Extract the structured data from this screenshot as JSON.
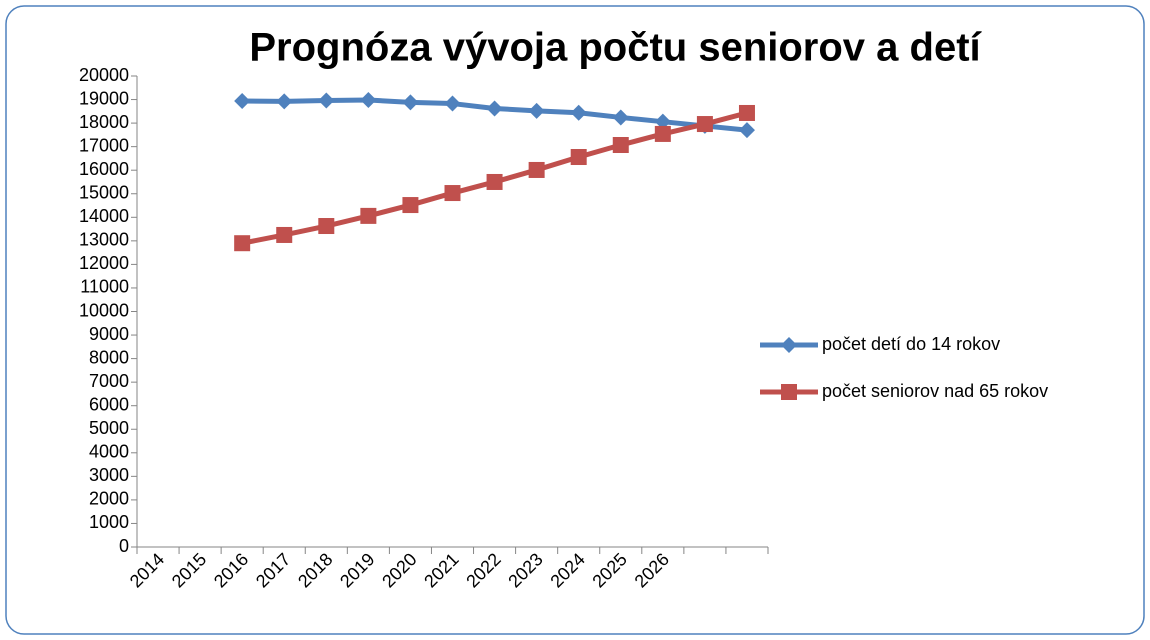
{
  "chart_data": {
    "type": "line",
    "title": "Prognóza vývoja počtu seniorov a detí",
    "categories": [
      "2014",
      "2015",
      "2016",
      "2017",
      "2018",
      "2019",
      "2020",
      "2021",
      "2022",
      "2023",
      "2024",
      "2025",
      "2026",
      null,
      null
    ],
    "series": [
      {
        "name": "počet detí do 14 rokov",
        "color": "#4f81bd",
        "marker": "diamond",
        "values": [
          null,
          null,
          18940,
          18920,
          18960,
          18980,
          18880,
          18830,
          18620,
          18520,
          18440,
          18240,
          18060,
          17880,
          17700
        ]
      },
      {
        "name": "počet seniorov nad 65 rokov",
        "color": "#c0504d",
        "marker": "square",
        "values": [
          null,
          null,
          12900,
          13250,
          13630,
          14060,
          14520,
          15030,
          15500,
          16010,
          16560,
          17070,
          17540,
          17960,
          18430
        ]
      }
    ],
    "ylim": [
      0,
      20000
    ],
    "yticks": [
      0,
      1000,
      2000,
      3000,
      4000,
      5000,
      6000,
      7000,
      8000,
      9000,
      10000,
      11000,
      12000,
      13000,
      14000,
      15000,
      16000,
      17000,
      18000,
      19000,
      20000
    ],
    "grid": false,
    "legend": "right"
  }
}
